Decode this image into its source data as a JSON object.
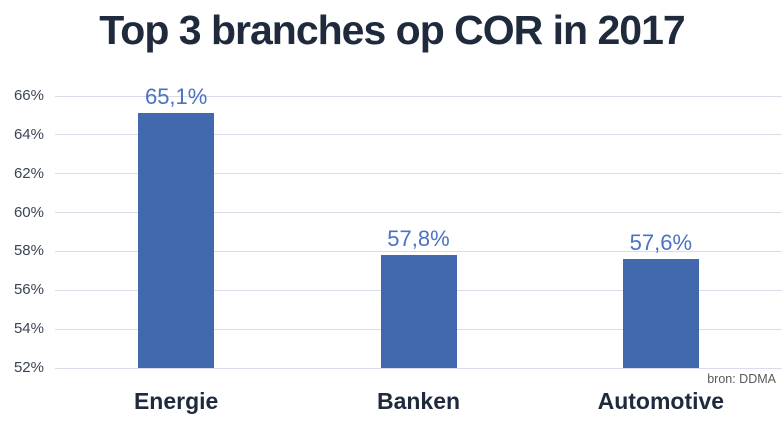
{
  "page": {
    "background": "#FFFFFF"
  },
  "chart_data": {
    "type": "bar",
    "title": "Top 3 branches op COR in 2017",
    "categories": [
      "Energie",
      "Banken",
      "Automotive"
    ],
    "values": [
      65.1,
      57.8,
      57.6
    ],
    "value_labels": [
      "65,1%",
      "57,8%",
      "57,6%"
    ],
    "xlabel": "",
    "ylabel": "",
    "ylim": [
      52,
      66
    ],
    "ytick_step": 2,
    "ytick_labels": [
      "52%",
      "54%",
      "56%",
      "58%",
      "60%",
      "62%",
      "64%",
      "66%"
    ],
    "grid": true,
    "legend": false,
    "source_note": "bron: DDMA",
    "colors": {
      "background": "#FFFFFF",
      "bar": "#4269AE",
      "value_label": "#4A73C4",
      "title": "#1F2A3C",
      "category_label": "#1F2A3C",
      "tick_label": "#3B4454",
      "gridline": "#D8DDE7",
      "source_note": "#595959"
    }
  }
}
